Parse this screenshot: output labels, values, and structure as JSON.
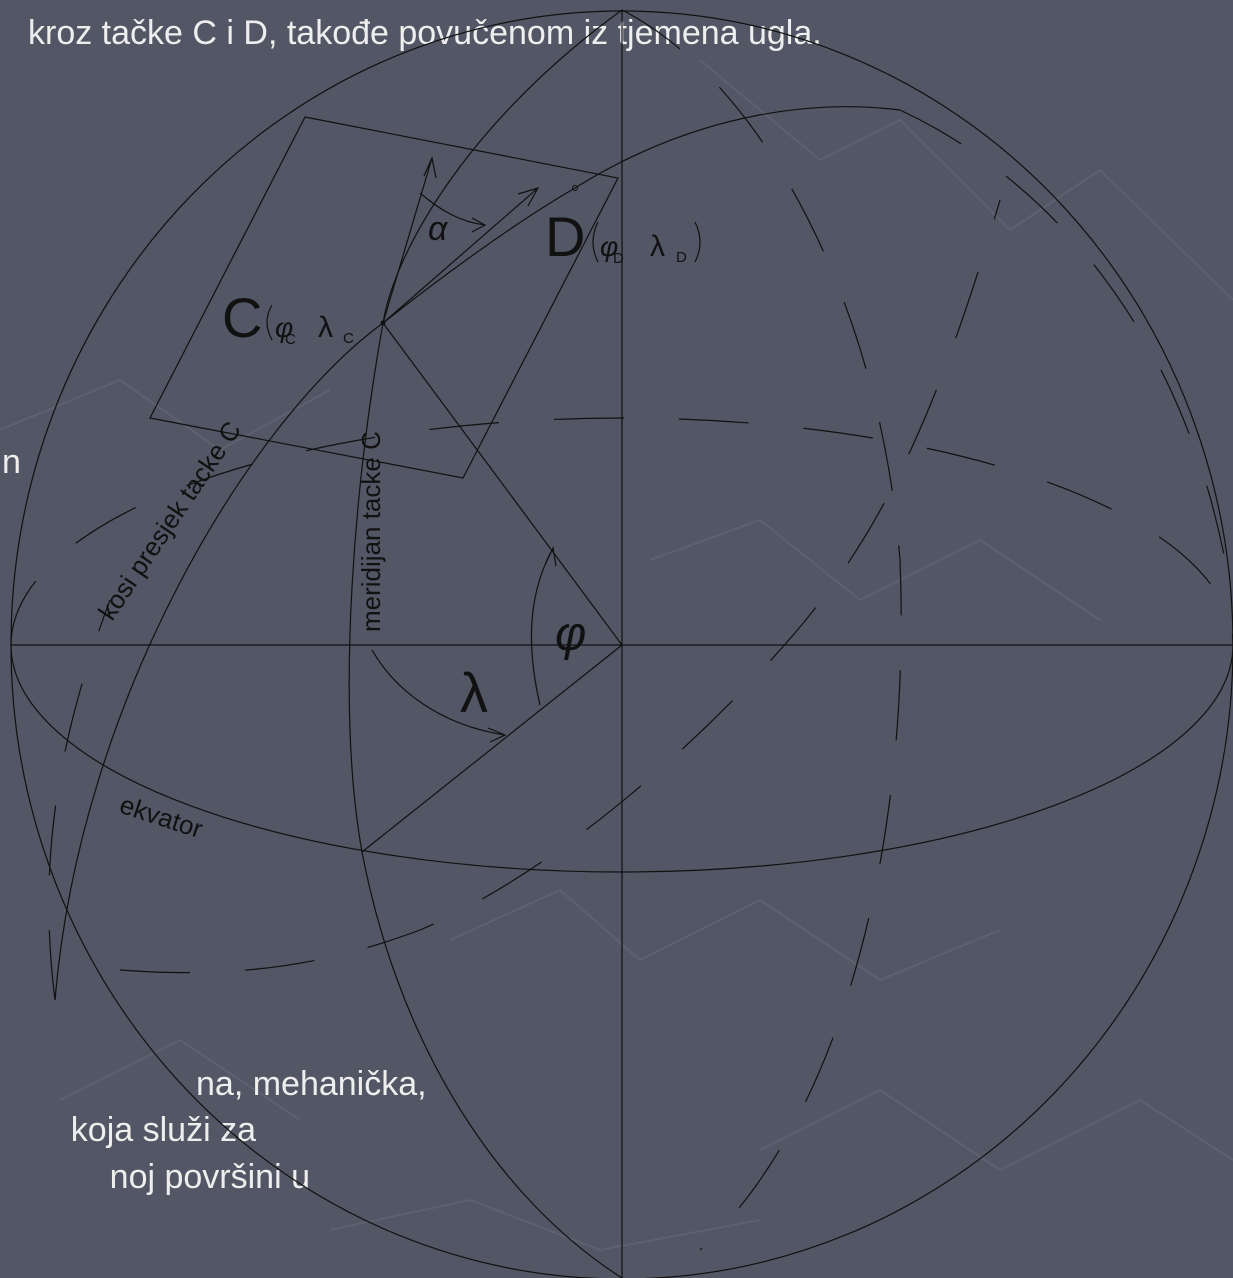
{
  "body_text": {
    "top_line": "kroz tačke C i D, takođe povučenom iz tjemena ugla.",
    "left_fragment": "n",
    "bottom_lines": [
      "na, mehanička,",
      "koja služi za",
      "noj površini u"
    ]
  },
  "points": [
    {
      "label": "C",
      "phi": "φ",
      "phi_sub": "C",
      "lambda": "λ",
      "lambda_sub": "C"
    },
    {
      "label": "D",
      "phi": "φ",
      "phi_sub": "D",
      "lambda": "λ",
      "lambda_sub": "D"
    }
  ],
  "angles": {
    "azimuth": "α",
    "latitude": "φ",
    "longitude": "λ"
  },
  "curves": {
    "oblique_section": "kosi presjek tacke C",
    "meridian": "meridijan tacke C",
    "equator": "ekvator"
  }
}
